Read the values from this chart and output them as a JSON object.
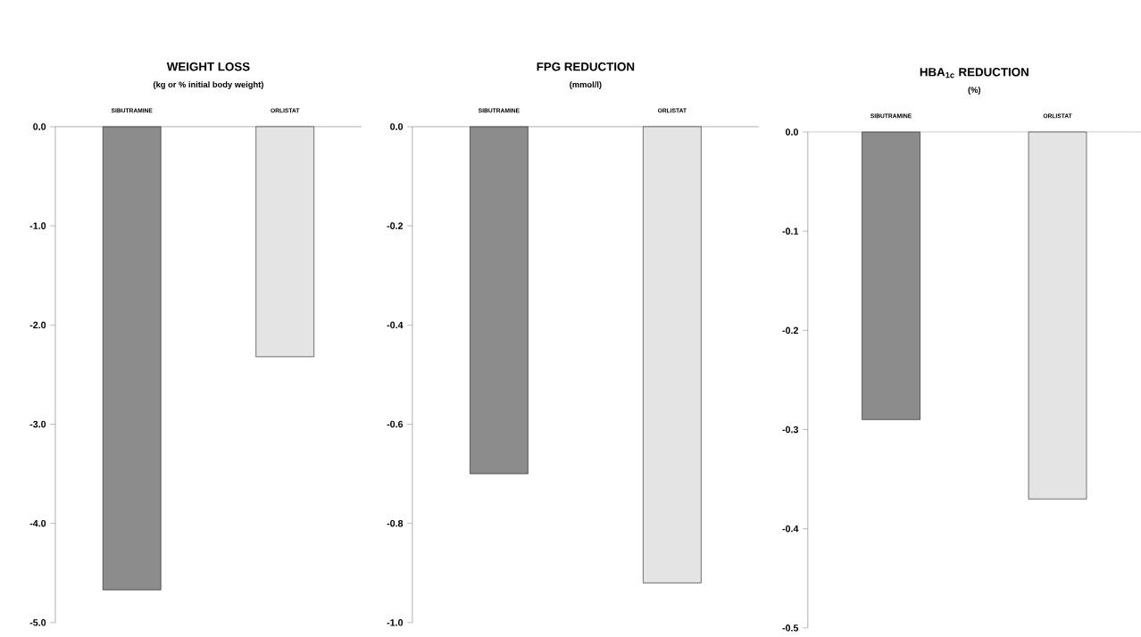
{
  "chart_data": [
    {
      "type": "bar",
      "title": "WEIGHT LOSS",
      "subtitle": "(kg or % initial body weight)",
      "categories": [
        "SIBUTRAMINE",
        "ORLISTAT"
      ],
      "values": [
        -4.67,
        -2.32
      ],
      "colors": [
        "#8c8c8c",
        "#e4e4e4"
      ],
      "ylim": [
        -5,
        0
      ],
      "yticks": [
        {
          "value": 0,
          "label": "0.0"
        },
        {
          "value": -1,
          "label": "-1.0"
        },
        {
          "value": -2,
          "label": "-2.0"
        },
        {
          "value": -3,
          "label": "-3.0"
        },
        {
          "value": -4,
          "label": "-4.0"
        },
        {
          "value": -5,
          "label": "-5.0"
        }
      ]
    },
    {
      "type": "bar",
      "title": "FPG REDUCTION",
      "subtitle": "(mmol/l)",
      "categories": [
        "SIBUTRAMINE",
        "ORLISTAT"
      ],
      "values": [
        -0.7,
        -0.92
      ],
      "colors": [
        "#8c8c8c",
        "#e4e4e4"
      ],
      "ylim": [
        -1,
        0
      ],
      "yticks": [
        {
          "value": 0,
          "label": "0.0"
        },
        -0.2,
        -0.4,
        -0.6,
        -0.8,
        {
          "value": -1,
          "label": "-1.0"
        }
      ]
    },
    {
      "type": "bar",
      "title": "HBA$_{1c}$ REDUCTION",
      "subtitle": "(%)",
      "categories": [
        "SIBUTRAMINE",
        "ORLISTAT"
      ],
      "values": [
        -0.29,
        -0.37
      ],
      "colors": [
        "#8c8c8c",
        "#e4e4e4"
      ],
      "ylim": [
        -0.5,
        0
      ],
      "yticks": [
        {
          "value": 0,
          "label": "0.0"
        },
        -0.1,
        -0.2,
        -0.3,
        -0.4,
        -0.5
      ]
    }
  ]
}
